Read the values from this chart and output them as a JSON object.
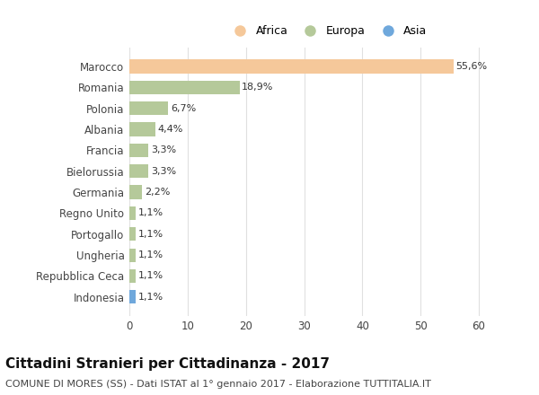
{
  "categories": [
    "Marocco",
    "Romania",
    "Polonia",
    "Albania",
    "Francia",
    "Bielorussia",
    "Germania",
    "Regno Unito",
    "Portogallo",
    "Ungheria",
    "Repubblica Ceca",
    "Indonesia"
  ],
  "values": [
    55.6,
    18.9,
    6.7,
    4.4,
    3.3,
    3.3,
    2.2,
    1.1,
    1.1,
    1.1,
    1.1,
    1.1
  ],
  "labels": [
    "55,6%",
    "18,9%",
    "6,7%",
    "4,4%",
    "3,3%",
    "3,3%",
    "2,2%",
    "1,1%",
    "1,1%",
    "1,1%",
    "1,1%",
    "1,1%"
  ],
  "colors": [
    "#F5C89A",
    "#B5C99A",
    "#B5C99A",
    "#B5C99A",
    "#B5C99A",
    "#B5C99A",
    "#B5C99A",
    "#B5C99A",
    "#B5C99A",
    "#B5C99A",
    "#B5C99A",
    "#6FA8DC"
  ],
  "legend_labels": [
    "Africa",
    "Europa",
    "Asia"
  ],
  "legend_colors": [
    "#F5C89A",
    "#B5C99A",
    "#6FA8DC"
  ],
  "title": "Cittadini Stranieri per Cittadinanza - 2017",
  "subtitle": "COMUNE DI MORES (SS) - Dati ISTAT al 1° gennaio 2017 - Elaborazione TUTTITALIA.IT",
  "xlim": [
    0,
    62
  ],
  "xticks": [
    0,
    10,
    20,
    30,
    40,
    50,
    60
  ],
  "background_color": "#ffffff",
  "grid_color": "#e0e0e0",
  "title_fontsize": 11,
  "subtitle_fontsize": 8,
  "bar_height": 0.65
}
